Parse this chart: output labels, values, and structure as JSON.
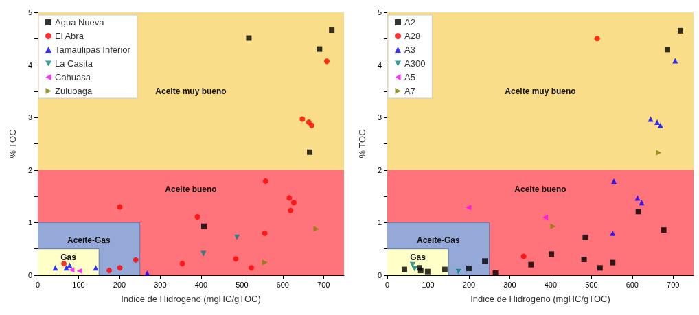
{
  "chart_data": [
    {
      "type": "scatter",
      "xlabel": "Indice de Hidrogeno (mgHC/gTOC)",
      "ylabel": "% TOC",
      "xlim": [
        0,
        750
      ],
      "xticks": [
        0,
        100,
        200,
        300,
        400,
        500,
        600,
        700
      ],
      "ylim": [
        0,
        5
      ],
      "yticks": [
        0,
        {
          "value": 0.5,
          "label": null
        },
        1,
        {
          "value": 1.5,
          "label": null
        },
        2,
        {
          "value": 2.5,
          "label": null
        },
        3,
        {
          "value": 3.5,
          "label": null
        },
        4,
        {
          "value": 4.5,
          "label": null
        },
        5
      ],
      "grid": false,
      "legend": "top left",
      "bands": [
        {
          "axis": "y",
          "from": 2,
          "to": 5,
          "label": "Aceite muy bueno",
          "color": "#fadd88"
        },
        {
          "axis": "y",
          "from": 0,
          "to": 2,
          "label": "Aceite bueno",
          "color": "#ff737a"
        }
      ],
      "series": [
        {
          "type": "area",
          "name": "Aceite-Gas",
          "color": "#95a9d8",
          "x": [
            0,
            250,
            250
          ],
          "values": [
            1,
            1,
            0
          ]
        },
        {
          "type": "area",
          "name": "Gas",
          "color": "#ffffc8",
          "x": [
            0,
            150,
            150
          ],
          "values": [
            0.5,
            0.5,
            0
          ]
        },
        {
          "name": "Agua Nueva",
          "color": "#000000",
          "marker": "square",
          "x": [
            517,
            690,
            720,
            666,
            407
          ],
          "values": [
            4.51,
            4.3,
            4.66,
            2.34,
            0.93
          ]
        },
        {
          "name": "El Abra",
          "color": "#ff0000",
          "marker": "circle",
          "x": [
            64,
            201,
            240,
            175,
            201,
            354,
            391,
            485,
            523,
            556,
            558,
            616,
            627,
            619,
            648,
            664,
            671,
            708
          ],
          "values": [
            0.22,
            1.3,
            0.29,
            0.09,
            0.14,
            0.22,
            1.11,
            0.31,
            0.14,
            0.8,
            1.79,
            1.47,
            1.38,
            1.23,
            2.97,
            2.91,
            2.85,
            4.07
          ]
        },
        {
          "name": "Tamaulipas Inferior",
          "color": "#0000ff",
          "marker": "triangle",
          "x": [
            43,
            70,
            78,
            142,
            268
          ],
          "values": [
            0.14,
            0.14,
            0.19,
            0.14,
            0.04
          ]
        },
        {
          "name": "La Casita",
          "color": "#008080",
          "marker": "triangle-down",
          "x": [
            488,
            406
          ],
          "values": [
            0.72,
            0.41
          ]
        },
        {
          "name": "Cahuasa",
          "color": "#ff00ff",
          "marker": "triangle-left",
          "x": [
            83,
            102
          ],
          "values": [
            0.1,
            0.08
          ]
        },
        {
          "name": "Zuluoaga",
          "color": "#808000",
          "marker": "triangle-right",
          "x": [
            682,
            556
          ],
          "values": [
            0.88,
            0.24
          ]
        }
      ]
    },
    {
      "type": "scatter",
      "xlabel": "Indice de Hidrogeno (mgHC/gTOC)",
      "ylabel": "% TOC",
      "xlim": [
        0,
        750
      ],
      "xticks": [
        0,
        100,
        200,
        300,
        400,
        500,
        600,
        700
      ],
      "ylim": [
        0,
        5
      ],
      "yticks": [
        0,
        {
          "value": 0.5,
          "label": null
        },
        1,
        {
          "value": 1.5,
          "label": null
        },
        2,
        {
          "value": 2.5,
          "label": null
        },
        3,
        {
          "value": 3.5,
          "label": null
        },
        4,
        {
          "value": 4.5,
          "label": null
        },
        5
      ],
      "grid": false,
      "legend": "top left",
      "bands": [
        {
          "axis": "y",
          "from": 2,
          "to": 5,
          "label": "Aceite muy bueno",
          "color": "#fadd88"
        },
        {
          "axis": "y",
          "from": 0,
          "to": 2,
          "label": "Aceite bueno",
          "color": "#ff737a"
        }
      ],
      "series": [
        {
          "type": "area",
          "name": "Aceite-Gas",
          "color": "#95a9d8",
          "x": [
            0,
            250,
            250
          ],
          "values": [
            1,
            1,
            0
          ]
        },
        {
          "type": "area",
          "name": "Gas",
          "color": "#ffffc8",
          "x": [
            0,
            150,
            150
          ],
          "values": [
            0.5,
            0.5,
            0
          ]
        },
        {
          "name": "A2",
          "color": "#000000",
          "marker": "square",
          "x": [
            42,
            79,
            82,
            99,
            141,
            200,
            239,
            265,
            352,
            402,
            485,
            482,
            521,
            552,
            615,
            677,
            686,
            718
          ],
          "values": [
            0.11,
            0.14,
            0.09,
            0.07,
            0.11,
            0.13,
            0.27,
            0.04,
            0.2,
            0.4,
            0.72,
            0.3,
            0.14,
            0.24,
            1.21,
            0.86,
            4.29,
            4.65
          ]
        },
        {
          "name": "A28",
          "color": "#ff0000",
          "marker": "circle",
          "x": [
            334,
            514
          ],
          "values": [
            0.36,
            4.5
          ]
        },
        {
          "name": "A3",
          "color": "#0000ff",
          "marker": "triangle",
          "x": [
            555,
            613,
            623,
            552,
            645,
            661,
            669,
            705
          ],
          "values": [
            1.79,
            1.47,
            1.38,
            0.8,
            2.97,
            2.91,
            2.85,
            4.08
          ]
        },
        {
          "name": "A300",
          "color": "#008080",
          "marker": "triangle-down",
          "x": [
            62,
            67,
            174
          ],
          "values": [
            0.2,
            0.12,
            0.07
          ]
        },
        {
          "name": "A5",
          "color": "#ff00ff",
          "marker": "triangle-left",
          "x": [
            199,
            387
          ],
          "values": [
            1.29,
            1.1
          ]
        },
        {
          "name": "A7",
          "color": "#808000",
          "marker": "triangle-right",
          "x": [
            406,
            665
          ],
          "values": [
            0.93,
            2.33
          ]
        }
      ]
    }
  ]
}
